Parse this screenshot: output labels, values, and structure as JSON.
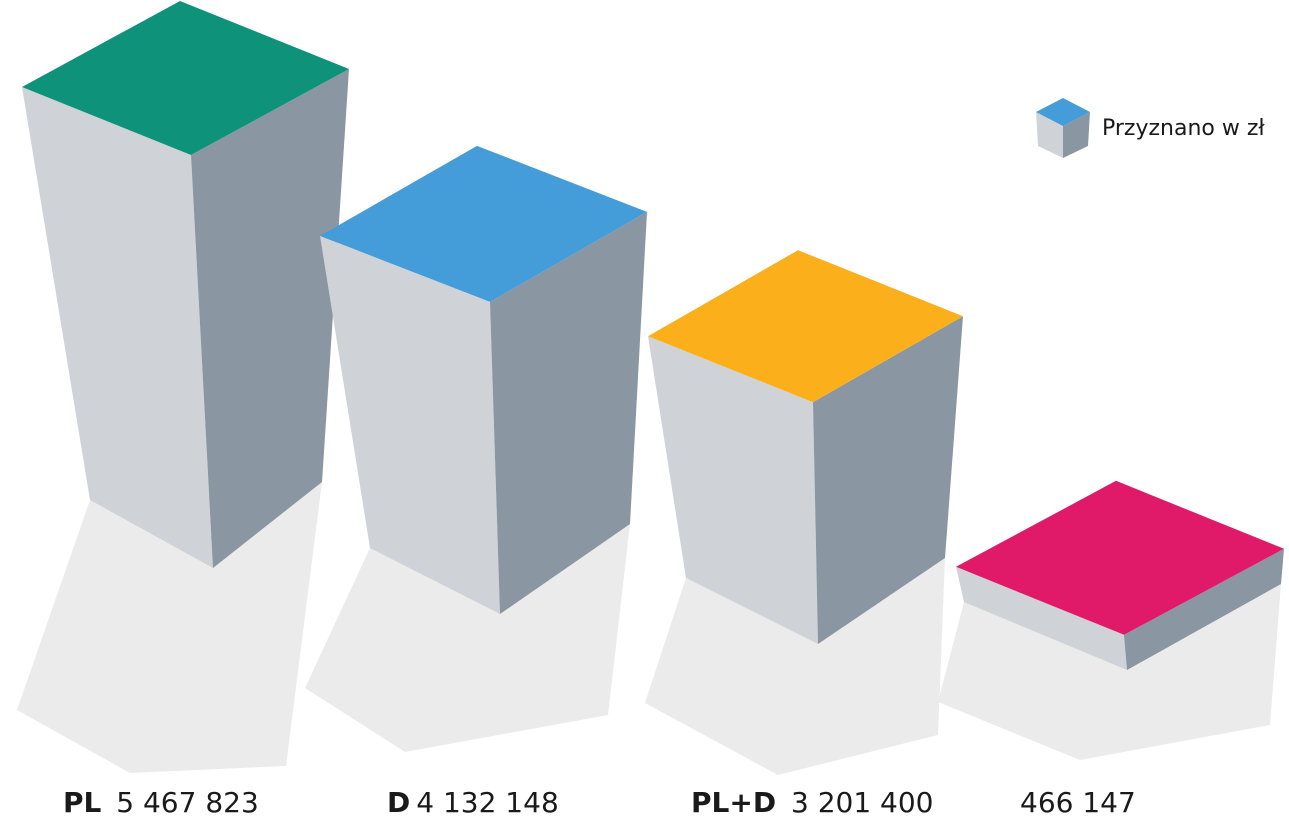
{
  "chart_data": {
    "type": "bar",
    "title": "",
    "legend": {
      "label": "Przyznano w zł",
      "placement": "top-right"
    },
    "categories": [
      "PL",
      "D",
      "PL+D",
      ""
    ],
    "series": [
      {
        "name": "Przyznano w zł",
        "values": [
          5467823,
          4132148,
          3201400,
          466147
        ]
      }
    ],
    "value_labels": [
      "5 467 823",
      "4 132 148",
      "3 201 400",
      "466 147"
    ],
    "colors": [
      "#0E937A",
      "#449CD8",
      "#FAAF1B",
      "#E01A68"
    ],
    "side_colors": {
      "front": "#CFD3D8",
      "right": "#8A96A1",
      "shadow": "#EBEBEB"
    }
  }
}
